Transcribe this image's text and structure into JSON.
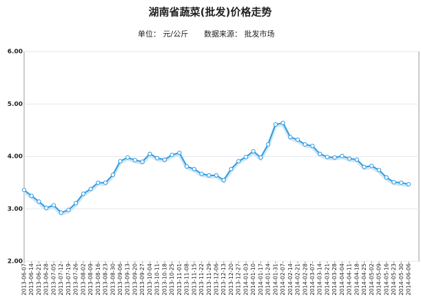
{
  "chart_data": {
    "type": "line",
    "title": "湖南省蔬菜(批发)价格走势",
    "unit": "单位： 元/公斤",
    "source": "数据来源： 批发市场",
    "categories": [
      "2013-06-07",
      "2013-06-14",
      "2013-06-21",
      "2013-06-28",
      "2013-07-05",
      "2013-07-12",
      "2013-07-19",
      "2013-07-26",
      "2013-08-02",
      "2013-08-09",
      "2013-08-16",
      "2013-08-23",
      "2013-08-30",
      "2013-09-06",
      "2013-09-13",
      "2013-09-20",
      "2013-09-27",
      "2013-10-04",
      "2013-10-11",
      "2013-10-18",
      "2013-10-25",
      "2013-11-01",
      "2013-11-08",
      "2013-11-15",
      "2013-11-22",
      "2013-11-29",
      "2013-12-06",
      "2013-12-13",
      "2013-12-20",
      "2013-12-27",
      "2014-01-03",
      "2014-01-10",
      "2014-01-17",
      "2014-01-24",
      "2014-01-31",
      "2014-02-07",
      "2014-02-14",
      "2014-02-21",
      "2014-02-28",
      "2014-03-07",
      "2014-03-14",
      "2014-03-21",
      "2014-03-28",
      "2014-04-04",
      "2014-04-11",
      "2014-04-18",
      "2014-04-25",
      "2014-05-02",
      "2014-05-09",
      "2014-05-16",
      "2014-05-23",
      "2014-05-30",
      "2014-06-06"
    ],
    "series": [
      {
        "color": "#2e9be0",
        "values": [
          3.36,
          3.25,
          3.14,
          3.02,
          3.07,
          2.93,
          2.98,
          3.11,
          3.29,
          3.38,
          3.5,
          3.5,
          3.65,
          3.91,
          3.98,
          3.93,
          3.9,
          4.05,
          3.97,
          3.94,
          4.03,
          4.07,
          3.81,
          3.76,
          3.67,
          3.64,
          3.64,
          3.55,
          3.76,
          3.91,
          3.99,
          4.1,
          3.98,
          4.23,
          4.61,
          4.64,
          4.37,
          4.32,
          4.23,
          4.2,
          4.05,
          3.99,
          3.98,
          4.01,
          3.96,
          3.94,
          3.8,
          3.82,
          3.74,
          3.6,
          3.51,
          3.5,
          3.47
        ]
      }
    ],
    "ylim": [
      2,
      6
    ],
    "yticks": [
      {
        "value": 2,
        "label": "2.00"
      },
      {
        "value": 3,
        "label": "3.00"
      },
      {
        "value": 4,
        "label": "4.00"
      },
      {
        "value": 5,
        "label": "5.00"
      },
      {
        "value": 6,
        "label": "6.00"
      }
    ],
    "grid": true
  }
}
